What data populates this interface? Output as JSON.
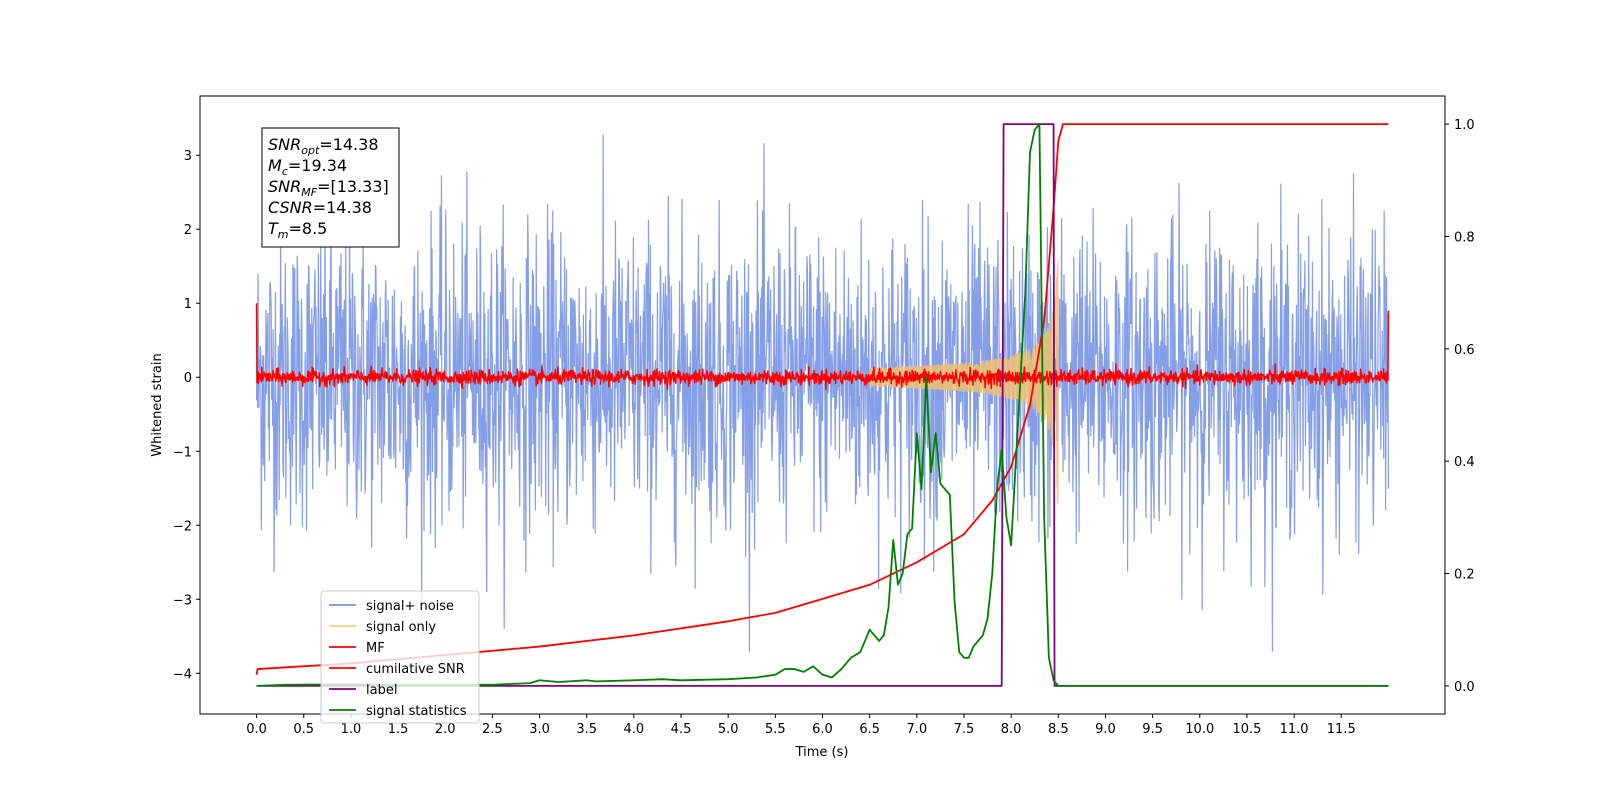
{
  "chart_data": {
    "type": "line",
    "xlabel": "Time (s)",
    "ylabel": "Whitened strain",
    "xlim": [
      -0.6,
      12.6
    ],
    "ylim": [
      -4.55,
      3.8
    ],
    "ylim_right": [
      -0.05,
      1.05
    ],
    "grid": false,
    "legend_position": "bottom-left",
    "x_ticks": [
      "0.0",
      "0.5",
      "1.0",
      "1.5",
      "2.0",
      "2.5",
      "3.0",
      "3.5",
      "4.0",
      "4.5",
      "5.0",
      "5.5",
      "6.0",
      "6.5",
      "7.0",
      "7.5",
      "8.0",
      "8.5",
      "9.0",
      "9.5",
      "10.0",
      "10.5",
      "11.0",
      "11.5"
    ],
    "y_ticks_left": [
      "3",
      "2",
      "1",
      "0",
      "−1",
      "−2",
      "−3",
      "−4"
    ],
    "y_ticks_right": [
      "1.0",
      "0.8",
      "0.6",
      "0.4",
      "0.2",
      "0.0"
    ],
    "info_box": [
      {
        "var": "SNR",
        "sub": "opt",
        "value": "=14.38"
      },
      {
        "var": "M",
        "sub": "c",
        "value": "=19.34"
      },
      {
        "var": "SNR",
        "sub": "MF",
        "value": "=[13.33]"
      },
      {
        "var": "CSNR",
        "sub": "",
        "value": "=14.38"
      },
      {
        "var": "T",
        "sub": "m",
        "value": "=8.5"
      }
    ],
    "series": [
      {
        "name": "signal+ noise",
        "color": "#7893e6",
        "axis": "left",
        "kind": "noise",
        "x_range": [
          0,
          12
        ],
        "amplitude_sigma": 1.0,
        "peak_range": [
          -3.7,
          3.4
        ]
      },
      {
        "name": "signal only",
        "color": "#f0c070",
        "axis": "left",
        "kind": "chirp",
        "x_range": [
          6.5,
          8.5
        ],
        "peak_amplitude": 3.4,
        "merger_time": 8.5
      },
      {
        "name": "MF",
        "color": "#ff0000",
        "axis": "left",
        "kind": "noise",
        "x_range": [
          0,
          12
        ],
        "amplitude_sigma": 0.05,
        "edges": [
          1.0,
          0.9
        ]
      },
      {
        "name": "cumilative SNR",
        "color": "#ff0000",
        "axis": "right",
        "x": [
          0,
          0.01,
          1,
          2,
          3,
          4,
          5,
          5.5,
          6,
          6.5,
          7,
          7.5,
          7.8,
          8.0,
          8.2,
          8.35,
          8.45,
          8.5,
          8.55,
          12
        ],
        "y": [
          0.02,
          0.03,
          0.04,
          0.055,
          0.07,
          0.09,
          0.115,
          0.13,
          0.155,
          0.18,
          0.22,
          0.27,
          0.33,
          0.39,
          0.5,
          0.65,
          0.85,
          0.97,
          1.0,
          1.0
        ]
      },
      {
        "name": "label",
        "color": "#800080",
        "axis": "right",
        "x": [
          0,
          7.9,
          7.92,
          8.45,
          8.46,
          12
        ],
        "y": [
          0,
          0,
          1,
          1,
          0,
          0
        ]
      },
      {
        "name": "signal statistics",
        "color": "#008000",
        "axis": "right",
        "x": [
          0,
          0.3,
          1,
          1.5,
          2.5,
          2.9,
          3.0,
          3.2,
          3.5,
          3.6,
          4,
          4.3,
          4.5,
          5,
          5.3,
          5.5,
          5.6,
          5.7,
          5.8,
          5.9,
          6.0,
          6.1,
          6.2,
          6.3,
          6.4,
          6.5,
          6.55,
          6.6,
          6.65,
          6.7,
          6.75,
          6.8,
          6.85,
          6.9,
          6.95,
          7.0,
          7.05,
          7.1,
          7.15,
          7.2,
          7.25,
          7.3,
          7.35,
          7.4,
          7.45,
          7.5,
          7.55,
          7.6,
          7.65,
          7.7,
          7.75,
          7.8,
          7.85,
          7.9,
          7.95,
          8.0,
          8.05,
          8.1,
          8.15,
          8.2,
          8.25,
          8.3,
          8.35,
          8.4,
          8.45,
          8.5,
          8.55,
          8.6,
          9,
          12
        ],
        "y": [
          0,
          0.002,
          0.003,
          0.002,
          0.002,
          0.005,
          0.01,
          0.007,
          0.01,
          0.008,
          0.01,
          0.012,
          0.01,
          0.012,
          0.015,
          0.02,
          0.03,
          0.03,
          0.025,
          0.035,
          0.02,
          0.015,
          0.03,
          0.05,
          0.06,
          0.1,
          0.09,
          0.08,
          0.09,
          0.14,
          0.26,
          0.18,
          0.2,
          0.27,
          0.28,
          0.45,
          0.35,
          0.55,
          0.38,
          0.45,
          0.36,
          0.35,
          0.34,
          0.15,
          0.06,
          0.05,
          0.05,
          0.07,
          0.08,
          0.09,
          0.12,
          0.2,
          0.35,
          0.42,
          0.3,
          0.25,
          0.4,
          0.55,
          0.7,
          0.95,
          0.99,
          1.0,
          0.3,
          0.05,
          0.01,
          0.0,
          0.0,
          0.0,
          0.0,
          0.0
        ]
      }
    ]
  }
}
